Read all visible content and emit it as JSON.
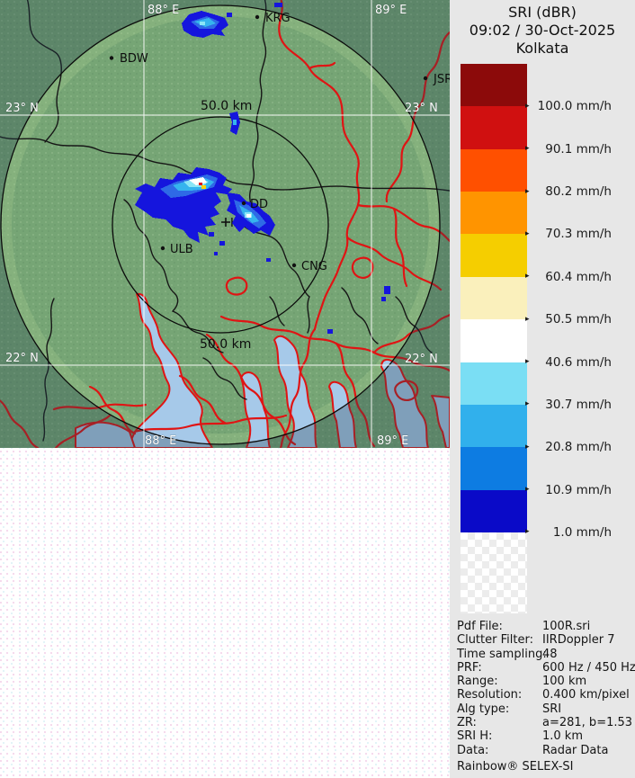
{
  "header": {
    "title": "SRI (dBR)",
    "datetime": "09:02 / 30-Oct-2025",
    "station": "Kolkata"
  },
  "legend": {
    "unit": "mm/h",
    "blocks": [
      "#8c0a0a",
      "#d01010",
      "#ff5000",
      "#ff9400",
      "#f5ce00",
      "#faf0bc",
      "#ffffff",
      "#7adef4",
      "#31b0ec",
      "#0d7ce2",
      "#0a0ac8"
    ],
    "labels": [
      "100.0 mm/h",
      "90.1 mm/h",
      "80.2 mm/h",
      "70.3 mm/h",
      "60.4 mm/h",
      "50.5 mm/h",
      "40.6 mm/h",
      "30.7 mm/h",
      "20.8 mm/h",
      "10.9 mm/h",
      "1.0 mm/h"
    ]
  },
  "metadata": {
    "rows": [
      {
        "label": "Pdf File:",
        "value": "100R.sri"
      },
      {
        "label": "Clutter Filter:",
        "value": "IIRDoppler 7"
      },
      {
        "label": "Time sampling:",
        "value": "48"
      },
      {
        "label": "PRF:",
        "value": "600 Hz / 450 Hz"
      },
      {
        "label": "Range:",
        "value": "100 km"
      },
      {
        "label": "Resolution:",
        "value": "0.400 km/pixel"
      },
      {
        "label": "Alg type:",
        "value": "SRI"
      },
      {
        "label": "ZR:",
        "value": "a=281, b=1.53"
      },
      {
        "label": "SRI H:",
        "value": "1.0 km"
      },
      {
        "label": "Data:",
        "value": "Radar Data"
      }
    ]
  },
  "footer": "Rainbow® SELEX-SI",
  "map": {
    "grid": {
      "lon_top_88": "88° E",
      "lon_top_89": "89° E",
      "lon_bottom_88": "88° E",
      "lon_bottom_89": "89° E",
      "lat23_left": "23° N",
      "lat23_right": "23° N",
      "lat22_left": "22° N",
      "lat22_right": "22° N"
    },
    "range_labels": {
      "top": "50.0 km",
      "bottom": "50.0 km"
    },
    "cities": [
      {
        "name": "BDW"
      },
      {
        "name": "KRG"
      },
      {
        "name": "JSR"
      },
      {
        "name": "DD"
      },
      {
        "name": "KLK"
      },
      {
        "name": "ULB"
      },
      {
        "name": "CNG"
      }
    ]
  }
}
